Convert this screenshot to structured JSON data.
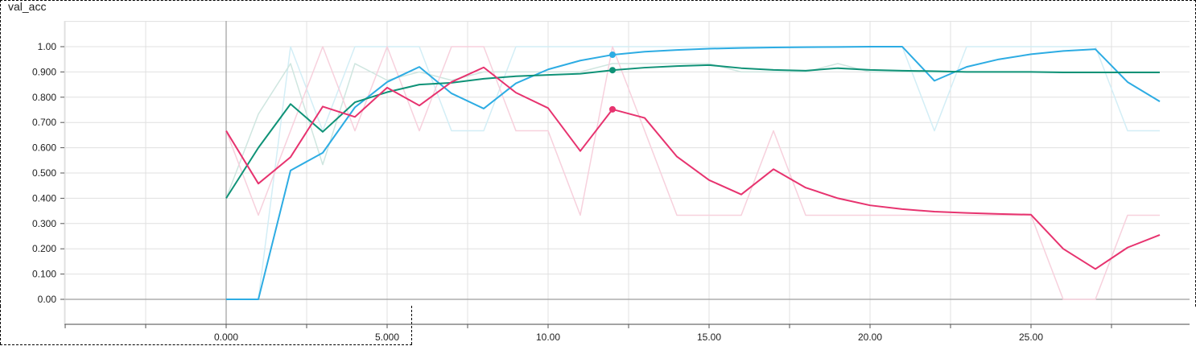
{
  "chart_data": {
    "type": "line",
    "title": "val_acc",
    "xlim": [
      -5,
      30
    ],
    "ylim": [
      -0.1,
      1.1
    ],
    "grid": true,
    "x_ticks": [
      "0.000",
      "5.000",
      "10.00",
      "15.00",
      "20.00",
      "25.00"
    ],
    "x_tick_values": [
      0,
      5,
      10,
      15,
      20,
      25
    ],
    "y_ticks": [
      "0.00",
      "0.100",
      "0.200",
      "0.300",
      "0.400",
      "0.500",
      "0.600",
      "0.700",
      "0.800",
      "0.900",
      "1.00"
    ],
    "y_tick_values": [
      0,
      0.1,
      0.2,
      0.3,
      0.4,
      0.5,
      0.6,
      0.7,
      0.8,
      0.9,
      1.0
    ],
    "hover_x": 12,
    "series": [
      {
        "color": "#2dace3",
        "raw_color": "#d3eef6",
        "x": [
          0,
          1,
          2,
          3,
          4,
          5,
          6,
          7,
          8,
          9,
          10,
          11,
          12,
          13,
          14,
          15,
          16,
          17,
          18,
          19,
          20,
          21,
          22,
          23,
          24,
          25,
          26,
          27,
          28,
          29
        ],
        "raw": [
          0,
          0,
          1.0,
          0.667,
          1.0,
          1.0,
          1.0,
          0.667,
          0.667,
          1.0,
          1.0,
          1.0,
          1.0,
          1.0,
          1.0,
          1.0,
          1.0,
          1.0,
          1.0,
          1.0,
          1.0,
          1.0,
          0.667,
          1.0,
          1.0,
          1.0,
          1.0,
          1.0,
          0.667,
          0.667
        ],
        "smoothed": [
          0,
          0,
          0.51,
          0.58,
          0.76,
          0.86,
          0.92,
          0.815,
          0.755,
          0.855,
          0.91,
          0.945,
          0.968,
          0.98,
          0.987,
          0.992,
          0.995,
          0.997,
          0.998,
          0.999,
          1.0,
          1.0,
          0.865,
          0.92,
          0.95,
          0.97,
          0.983,
          0.99,
          0.86,
          0.783
        ]
      },
      {
        "color": "#0f9277",
        "raw_color": "#cfe6e0",
        "x": [
          0,
          1,
          2,
          3,
          4,
          5,
          6,
          7,
          8,
          9,
          10,
          11,
          12,
          13,
          14,
          15,
          16,
          17,
          18,
          19,
          20,
          21,
          22,
          23,
          24,
          25,
          26,
          27,
          28,
          29
        ],
        "raw": [
          0.4,
          0.733,
          0.933,
          0.533,
          0.933,
          0.867,
          0.9,
          0.867,
          0.9,
          0.9,
          0.9,
          0.9,
          0.933,
          0.933,
          0.933,
          0.933,
          0.9,
          0.9,
          0.9,
          0.933,
          0.9,
          0.9,
          0.9,
          0.9,
          0.9,
          0.9,
          0.9,
          0.9,
          0.9,
          0.9
        ],
        "smoothed": [
          0.4,
          0.6,
          0.773,
          0.663,
          0.78,
          0.82,
          0.85,
          0.857,
          0.873,
          0.883,
          0.888,
          0.893,
          0.907,
          0.917,
          0.923,
          0.927,
          0.915,
          0.908,
          0.905,
          0.915,
          0.908,
          0.905,
          0.903,
          0.9,
          0.9,
          0.9,
          0.898,
          0.898,
          0.898,
          0.898
        ]
      },
      {
        "color": "#e7336f",
        "raw_color": "#f7d1dd",
        "x": [
          0,
          1,
          2,
          3,
          4,
          5,
          6,
          7,
          8,
          9,
          10,
          11,
          12,
          13,
          14,
          15,
          16,
          17,
          18,
          19,
          20,
          21,
          22,
          23,
          24,
          25,
          26,
          27,
          28,
          29
        ],
        "raw": [
          0.667,
          0.333,
          0.667,
          1.0,
          0.667,
          1.0,
          0.667,
          1.0,
          1.0,
          0.667,
          0.667,
          0.333,
          1.0,
          0.667,
          0.333,
          0.333,
          0.333,
          0.667,
          0.333,
          0.333,
          0.333,
          0.333,
          0.333,
          0.333,
          0.333,
          0.333,
          0,
          0,
          0.333,
          0.333
        ],
        "smoothed": [
          0.667,
          0.458,
          0.563,
          0.763,
          0.722,
          0.838,
          0.767,
          0.86,
          0.918,
          0.818,
          0.757,
          0.587,
          0.752,
          0.718,
          0.565,
          0.472,
          0.415,
          0.515,
          0.442,
          0.4,
          0.372,
          0.357,
          0.347,
          0.342,
          0.338,
          0.335,
          0.2,
          0.12,
          0.205,
          0.255
        ]
      }
    ]
  }
}
